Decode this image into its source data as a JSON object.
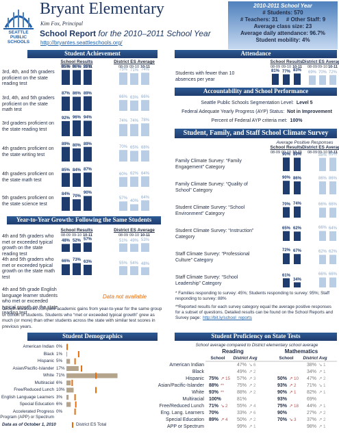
{
  "header": {
    "title": "Bryant Elementary",
    "principal": "Kim Fox, Principal",
    "report_title": "School Report",
    "report_year": "for the 2010–2011 School Year",
    "url": "http://bryantes.seattleschools.org/",
    "logo": [
      "SEATTLE",
      "PUBLIC",
      "SCHOOLS"
    ]
  },
  "stats": {
    "title": "2010-2011 School Year",
    "lines": [
      [
        "# Students: 570"
      ],
      [
        "# Teachers: 31",
        "# Other Staff: 9"
      ],
      [
        "Average class size: 23"
      ],
      [
        "Average daily attendance: 96.7%"
      ],
      [
        "Student mobility: 4%"
      ]
    ]
  },
  "colors": {
    "school": "#1f3c6e",
    "district": "#b9cde5",
    "demographic": "#b5a48c",
    "district_mark": "#e46c0a"
  },
  "achievement": {
    "title": "Student Achievement",
    "school_header": "School Results",
    "district_header": "District ES Average",
    "years": [
      "08-09",
      "09-10",
      "10-11"
    ],
    "rows": [
      {
        "label": "3rd, 4th, and 5th graders proficient on the state reading test",
        "school": {
          "values": [
            91,
            90,
            92
          ],
          "value_labels": [
            "91%",
            "90%",
            "92%"
          ]
        },
        "district": {
          "values": [
            75,
            71,
            74
          ],
          "value_labels": [
            "75%",
            "71%",
            "74%"
          ]
        }
      },
      {
        "label": "3rd, 4th, and 5th graders proficient on the state math test",
        "school": {
          "values": [
            87,
            86,
            89
          ],
          "value_labels": [
            "87%",
            "86%",
            "89%"
          ]
        },
        "district": {
          "values": [
            66,
            63,
            66
          ],
          "value_labels": [
            "66%",
            "63%",
            "66%"
          ]
        }
      },
      {
        "label": "3rd graders proficient on the state reading test",
        "school": {
          "values": [
            92,
            96,
            94
          ],
          "value_labels": [
            "92%",
            "96%",
            "94%"
          ]
        },
        "district": {
          "values": [
            74,
            74,
            78
          ],
          "value_labels": [
            "74%",
            "74%",
            "78%"
          ]
        }
      },
      {
        "label": "4th graders proficient on the state writing test",
        "school": {
          "values": [
            89,
            80,
            89
          ],
          "value_labels": [
            "89%",
            "80%",
            "89%"
          ]
        },
        "district": {
          "values": [
            70,
            65,
            68
          ],
          "value_labels": [
            "70%",
            "65%",
            "68%"
          ]
        }
      },
      {
        "label": "4th graders proficient on the state math test",
        "school": {
          "values": [
            85,
            84,
            87
          ],
          "value_labels": [
            "85%",
            "84%",
            "87%"
          ]
        },
        "district": {
          "values": [
            60,
            62,
            64
          ],
          "value_labels": [
            "60%",
            "62%",
            "64%"
          ]
        }
      },
      {
        "label": "5th graders proficient on the state science test",
        "school": {
          "values": [
            84,
            70,
            90
          ],
          "value_labels": [
            "84%",
            "70%",
            "90%"
          ]
        },
        "district": {
          "values": [
            57,
            40,
            64
          ],
          "value_labels": [
            "57%",
            "40%",
            "64%"
          ]
        }
      }
    ]
  },
  "growth": {
    "title": "Year-to-Year Growth: Following the Same Students",
    "school_header": "School Results",
    "district_header": "District ES Average",
    "years": [
      "08-09",
      "09-10",
      "10-11"
    ],
    "rows": [
      {
        "label": "4th and 5th graders who met or exceeded typical growth on the state reading test",
        "school": {
          "values": [
            48,
            52,
            57
          ],
          "value_labels": [
            "48%",
            "52%",
            "57%"
          ]
        },
        "district": {
          "values": [
            51,
            49,
            53
          ],
          "value_labels": [
            "51%",
            "49%",
            "53%"
          ]
        }
      },
      {
        "label": "4th and 5th graders who met or exceeded typical growth on the state math test",
        "school": {
          "values": [
            66,
            73,
            63
          ],
          "value_labels": [
            "66%",
            "73%",
            "63%"
          ]
        },
        "district": {
          "values": [
            55,
            54,
            48
          ],
          "value_labels": [
            "55%",
            "54%",
            "48%"
          ]
        }
      },
      {
        "label": "4th and 5th grade English language learner students who met or exceeded typical growth on the state reading test",
        "note": "Data not available"
      }
    ],
    "description": "Growth measures compare academic gains from year-to-year for the same group or cohort of students. Students who “met or exceeded typical growth” grew as much (or more) than other students across the state with similar test scores in previous years."
  },
  "attendance": {
    "title": "Attendance",
    "school_header": "School Results",
    "district_header": "District ES Average",
    "years": [
      "08-09",
      "09-10",
      "10-11"
    ],
    "rows": [
      {
        "label": "Students with fewer than 10 absences per year",
        "school": {
          "values": [
            81,
            77,
            83
          ],
          "value_labels": [
            "81%",
            "77%",
            "83%"
          ]
        },
        "district": {
          "values": [
            69,
            70,
            72
          ],
          "value_labels": [
            "69%",
            "70%",
            "72%"
          ]
        }
      }
    ]
  },
  "accountability": {
    "title": "Accountability and School Performance",
    "items": [
      {
        "label": "Seattle Public Schools Segmentation Level:",
        "value": "Level 5"
      },
      {
        "label": "Federal Adequate Yearly Progress (AYP) Status:",
        "value": "Not in Improvement"
      },
      {
        "label": "Percent of Federal AYP criteria met:",
        "value": "100%"
      }
    ]
  },
  "climate": {
    "title": "Student, Family, and Staff School Climate Survey",
    "subtitle": "Average Positive Responses",
    "school_header": "School Results",
    "district_header": "District ES Average",
    "years": [
      "08-09",
      "09-10",
      "10-11"
    ],
    "rows": [
      {
        "label": "Family Climate Survey: “Family Engagement” Category",
        "school": {
          "values": [
            null,
            90,
            89
          ],
          "value_labels": [
            null,
            "90%",
            "89%"
          ]
        },
        "district": {
          "values": [
            null,
            88,
            89
          ],
          "value_labels": [
            null,
            "88%",
            "89%"
          ]
        }
      },
      {
        "label": "Family Climate Survey: “Quality of School” Category",
        "school": {
          "values": [
            null,
            90,
            86
          ],
          "value_labels": [
            null,
            "90%",
            "86%"
          ]
        },
        "district": {
          "values": [
            null,
            86,
            86
          ],
          "value_labels": [
            null,
            "86%",
            "86%"
          ]
        }
      },
      {
        "label": "Student Climate Survey: “School Environment” Category",
        "school": {
          "values": [
            null,
            70,
            74
          ],
          "value_labels": [
            null,
            "70%",
            "74%"
          ]
        },
        "district": {
          "values": [
            null,
            66,
            66
          ],
          "value_labels": [
            null,
            "66%",
            "66%"
          ]
        }
      },
      {
        "label": "Student Climate Survey: “Instruction” Category",
        "school": {
          "values": [
            null,
            65,
            62
          ],
          "value_labels": [
            null,
            "65%",
            "62%"
          ]
        },
        "district": {
          "values": [
            null,
            66,
            64
          ],
          "value_labels": [
            null,
            "66%",
            "64%"
          ]
        }
      },
      {
        "label": "Staff Climate Survey: “Professional Culture” Category",
        "school": {
          "values": [
            null,
            72,
            67
          ],
          "value_labels": [
            null,
            "72%",
            "67%"
          ]
        },
        "district": {
          "values": [
            null,
            62,
            62
          ],
          "value_labels": [
            null,
            "62%",
            "62%"
          ]
        }
      },
      {
        "label": "Staff Climate Survey: “School Leadership” Category",
        "school": {
          "values": [
            null,
            61,
            34
          ],
          "value_labels": [
            null,
            "61%",
            "34%"
          ]
        },
        "district": {
          "values": [
            null,
            66,
            66
          ],
          "value_labels": [
            null,
            "66%",
            "66%"
          ]
        }
      }
    ],
    "footnote": "* Families responding to survey: 45%; Students responding to survey: 95%; Staff responding to survey: 88%",
    "note": "**Reported results for each survey category equal the average positive responses for a subset of questions. Detailed results can be found on the School Reports and Survey page:",
    "note_link": "http://bit.ly/school_reports"
  },
  "demographics": {
    "title": "Student Demographics",
    "rows": [
      {
        "label": "American Indian",
        "value": 0,
        "value_label": "0%",
        "district": 1
      },
      {
        "label": "Black",
        "value": 1,
        "value_label": "1%",
        "district": 17
      },
      {
        "label": "Hispanic",
        "value": 5,
        "value_label": "5%",
        "district": 12
      },
      {
        "label": "Asian/Pacific-Islander",
        "value": 17,
        "value_label": "17%",
        "district": 21
      },
      {
        "label": "White",
        "value": 71,
        "value_label": "71%",
        "district": 41
      },
      {
        "label": "Multiracial",
        "value": 6,
        "value_label": "6%",
        "district": 8
      },
      {
        "label": "Free/Reduced Lunch",
        "value": 10,
        "value_label": "10%",
        "district": 41
      },
      {
        "label": "English Language Learners",
        "value": 3,
        "value_label": "3%",
        "district": 12
      },
      {
        "label": "Special Education",
        "value": 6,
        "value_label": "6%",
        "district": 13
      },
      {
        "label": "Accelerated Progress Program (APP) or Spectrum",
        "value": 0,
        "value_label": "0%",
        "district": 12
      }
    ],
    "note": "Data as of October 1, 2010",
    "legend": "District ES Total"
  },
  "proficiency": {
    "title": "Student Proficiency on State Tests",
    "subtitle": "School average compared to District elementary school average",
    "subjects": [
      "Reading",
      "Mathematics"
    ],
    "columns": [
      "School",
      "District Avg"
    ],
    "rows": [
      {
        "label": "American Indian",
        "cells": [
          null,
          [
            "47%",
            "↘ 6"
          ],
          null,
          [
            "38%",
            "↘ 1"
          ]
        ]
      },
      {
        "label": "Black",
        "cells": [
          null,
          [
            "49%",
            "↗ 2"
          ],
          null,
          [
            "34%",
            "↗ 1"
          ]
        ]
      },
      {
        "label": "Hispanic",
        "cells": [
          [
            "75%",
            "↗ 15"
          ],
          [
            "57%",
            "↗ 3"
          ],
          [
            "50%",
            "↗ 10"
          ],
          [
            "47%",
            "↗ 2"
          ]
        ]
      },
      {
        "label": "Asian/Pacific-Islander",
        "cells": [
          [
            "88%",
            "**"
          ],
          [
            "75%",
            "↗ 2"
          ],
          [
            "93%",
            "↗ 2"
          ],
          [
            "71%",
            "↘ 1"
          ]
        ]
      },
      {
        "label": "White",
        "cells": [
          [
            "93%",
            "**"
          ],
          [
            "88%",
            "↗ 2"
          ],
          [
            "90%",
            "↗ 1"
          ],
          [
            "82%",
            "↗ 1"
          ]
        ]
      },
      {
        "label": "Multiracial",
        "cells": [
          [
            "100%"
          ],
          [
            "81%"
          ],
          [
            "93%"
          ],
          [
            "69%"
          ]
        ]
      },
      {
        "label": "Free/Reduced Lunch",
        "cells": [
          [
            "71%",
            "↘ 2"
          ],
          [
            "55%",
            "↗ 4"
          ],
          [
            "75%",
            "↗ 18"
          ],
          [
            "44%",
            "↗ 1"
          ]
        ]
      },
      {
        "label": "Eng. Lang. Learners",
        "cells": [
          [
            "70%"
          ],
          [
            "33%",
            "↗ 6"
          ],
          [
            "90%"
          ],
          [
            "27%",
            "↗ 2"
          ]
        ]
      },
      {
        "label": "Special Education",
        "cells": [
          [
            "89%",
            "↗ 4"
          ],
          [
            "50%",
            "↗ 2"
          ],
          [
            "70%",
            "↘ 3"
          ],
          [
            "37%",
            "↗ 2"
          ]
        ]
      },
      {
        "label": "APP or Spectrum",
        "cells": [
          null,
          [
            "99%",
            "↗ 1"
          ],
          null,
          [
            "98%",
            "↗ 1"
          ]
        ]
      }
    ]
  }
}
